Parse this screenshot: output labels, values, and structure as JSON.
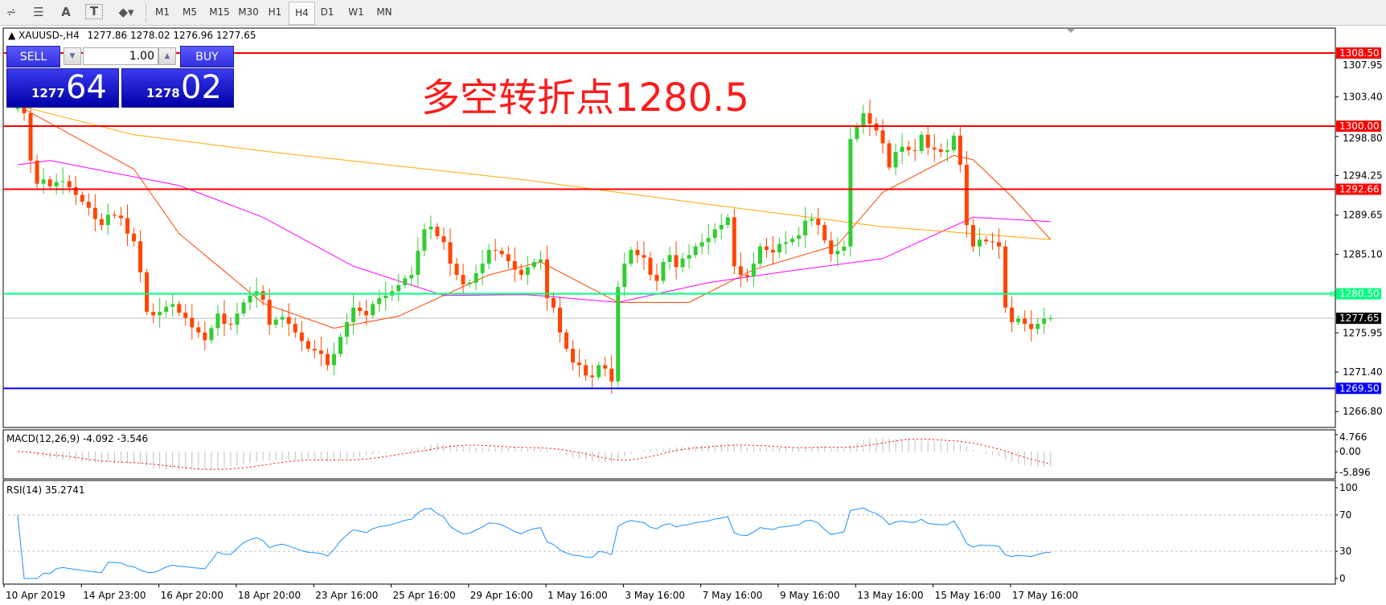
{
  "toolbar": {
    "icons": [
      "elliott-wave-icon",
      "fibonacci-fan-icon",
      "text-label-icon",
      "text-box-icon",
      "arrows-icon"
    ],
    "timeframes": [
      "M1",
      "M5",
      "M15",
      "M30",
      "H1",
      "H4",
      "D1",
      "W1",
      "MN"
    ],
    "active_timeframe": "H4"
  },
  "header": {
    "symbol": "XAUUSD-,H4",
    "ohlc": "1277.86 1278.02 1276.96 1277.65"
  },
  "trade_panel": {
    "sell_label": "SELL",
    "buy_label": "BUY",
    "lot": "1.00",
    "sell_price_small": "1277",
    "sell_price_big": "64",
    "buy_price_small": "1278",
    "buy_price_big": "02"
  },
  "annotation": "多空转折点1280.5",
  "indicators": {
    "macd_label": "MACD(12,26,9) -4.092 -3.546",
    "rsi_label": "RSI(14) 35.2741"
  },
  "chart_data": {
    "type": "candlestick",
    "symbol": "XAUUSD",
    "timeframe": "H4",
    "price_axis_ticks": [
      "1307.95",
      "1303.40",
      "1298.80",
      "1294.25",
      "1289.65",
      "1285.10",
      "1275.95",
      "1271.40",
      "1266.80"
    ],
    "price_axis_values": [
      1307.95,
      1303.4,
      1298.8,
      1294.25,
      1289.65,
      1285.1,
      1275.95,
      1271.4,
      1266.8
    ],
    "horizontal_lines": [
      {
        "price": 1308.5,
        "label": "1308.50",
        "color": "#ff0000"
      },
      {
        "price": 1300.0,
        "label": "1300.00",
        "color": "#ff0000"
      },
      {
        "price": 1292.66,
        "label": "1292.66",
        "color": "#ff0000"
      },
      {
        "price": 1280.5,
        "label": "1280.50",
        "color": "#00ff7f"
      },
      {
        "price": 1269.5,
        "label": "1269.50",
        "color": "#0000ff"
      }
    ],
    "bid_line": {
      "price": 1277.65,
      "label": "1277.65"
    },
    "time_labels": [
      "10 Apr 2019",
      "14 Apr 23:00",
      "16 Apr 20:00",
      "18 Apr 20:00",
      "23 Apr 16:00",
      "25 Apr 16:00",
      "29 Apr 16:00",
      "1 May 16:00",
      "3 May 16:00",
      "7 May 16:00",
      "9 May 16:00",
      "13 May 16:00",
      "15 May 16:00",
      "17 May 16:00"
    ],
    "first_open": 1302.0,
    "closes": [
      1302.4,
      1301.5,
      1296,
      1293.3,
      1293.8,
      1293,
      1293.5,
      1293.6,
      1292.9,
      1292,
      1291.2,
      1290.5,
      1289.2,
      1288.5,
      1289.7,
      1289.6,
      1289.3,
      1287.5,
      1286.6,
      1283,
      1278.4,
      1278,
      1278.4,
      1279,
      1279.3,
      1278.3,
      1277.7,
      1276.6,
      1276,
      1275.1,
      1276.5,
      1278.2,
      1277,
      1276.9,
      1278.2,
      1279.5,
      1280.3,
      1280.8,
      1279.8,
      1276.9,
      1277.5,
      1277.8,
      1277,
      1276,
      1275,
      1274.1,
      1273.9,
      1273.5,
      1272.2,
      1273.5,
      1275.5,
      1277.2,
      1278.9,
      1278.5,
      1278,
      1279.3,
      1280,
      1280.3,
      1280.8,
      1281.5,
      1282.3,
      1282.7,
      1285.5,
      1288,
      1288.3,
      1287.2,
      1286.5,
      1284,
      1282.7,
      1281.6,
      1281.8,
      1282.9,
      1284,
      1285.6,
      1285.5,
      1285.1,
      1284.3,
      1283.3,
      1282.7,
      1283.6,
      1284.2,
      1284.5,
      1280,
      1278.9,
      1276,
      1274.1,
      1272.5,
      1272.2,
      1271,
      1270.8,
      1272.2,
      1271.8,
      1270.3,
      1281.3,
      1284,
      1285.6,
      1285,
      1284.7,
      1282.7,
      1282,
      1284.2,
      1285,
      1283.6,
      1284.6,
      1285,
      1286,
      1286.5,
      1287,
      1288,
      1288.5,
      1289.4,
      1283.7,
      1282.7,
      1282.5,
      1284,
      1286,
      1285.6,
      1285.3,
      1286.3,
      1286.5,
      1286.9,
      1287.3,
      1289,
      1289.2,
      1288.5,
      1286.7,
      1285.1,
      1285.5,
      1286,
      1298.5,
      1300,
      1301.5,
      1300.3,
      1299.5,
      1298,
      1295.2,
      1297,
      1297.6,
      1297.2,
      1297.1,
      1299,
      1297.5,
      1297.3,
      1297,
      1297.2,
      1298.9,
      1295.5,
      1288.5,
      1286,
      1286.8,
      1286.6,
      1286.5,
      1286,
      1278.9,
      1277.2,
      1277.6,
      1277,
      1276.4,
      1277,
      1277.6,
      1277.65
    ],
    "moving_averages": [
      {
        "color": "#ff4500",
        "points": [
          [
            0,
            1302.4
          ],
          [
            18,
            1295
          ],
          [
            25,
            1287.5
          ],
          [
            38,
            1279.4
          ],
          [
            49,
            1276.5
          ],
          [
            59,
            1277.9
          ],
          [
            73,
            1282.7
          ],
          [
            81,
            1284.2
          ],
          [
            93,
            1279.5
          ],
          [
            104,
            1279.5
          ],
          [
            114,
            1283.3
          ],
          [
            127,
            1286.2
          ],
          [
            134,
            1292.3
          ],
          [
            145,
            1296.6
          ],
          [
            148,
            1296.1
          ],
          [
            154,
            1291.8
          ],
          [
            160,
            1286.8
          ]
        ]
      },
      {
        "color": "#ff00ff",
        "points": [
          [
            0,
            1295.5
          ],
          [
            5,
            1296
          ],
          [
            25,
            1293.1
          ],
          [
            38,
            1289.4
          ],
          [
            52,
            1283.7
          ],
          [
            66,
            1280.3
          ],
          [
            79,
            1280.4
          ],
          [
            93,
            1279.5
          ],
          [
            107,
            1281.8
          ],
          [
            120,
            1283.2
          ],
          [
            134,
            1284.6
          ],
          [
            148,
            1289.4
          ],
          [
            160,
            1288.9
          ]
        ]
      },
      {
        "color": "#ffa500",
        "points": [
          [
            0,
            1302.4
          ],
          [
            18,
            1299
          ],
          [
            38,
            1297.1
          ],
          [
            79,
            1293.7
          ],
          [
            107,
            1290.9
          ],
          [
            134,
            1288.3
          ],
          [
            160,
            1286.8
          ]
        ]
      }
    ],
    "up_color": "#32cd32",
    "down_color": "#ff4500",
    "macd": {
      "fast": 12,
      "slow": 26,
      "signal": 9,
      "axis_labels": [
        "4.766",
        "0.00",
        "-5.896"
      ],
      "axis_values": [
        4.766,
        0,
        -5.896
      ]
    },
    "rsi": {
      "period": 14,
      "levels": [
        70,
        30
      ],
      "axis_labels": [
        "100",
        "70",
        "30",
        "0"
      ],
      "axis_values": [
        100,
        70,
        30,
        0
      ],
      "color": "#1e90ff"
    }
  }
}
